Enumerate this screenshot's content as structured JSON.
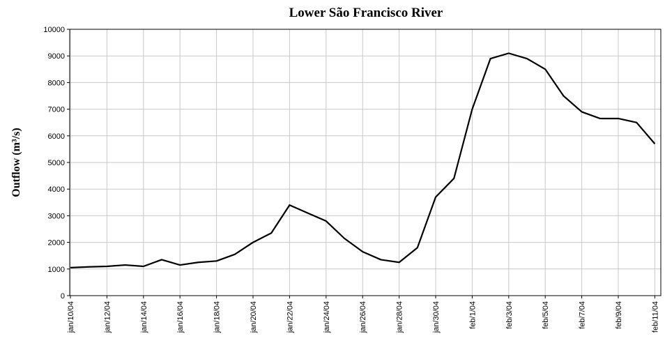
{
  "chart_data": {
    "type": "line",
    "title": "Lower São Francisco River",
    "y_label": "Outflow (m³/s)",
    "categories": [
      "jan/10/04",
      null,
      "jan/12/04",
      null,
      "jan/14/04",
      null,
      "jan/16/04",
      null,
      "jan/18/04",
      null,
      "jan/20/04",
      null,
      "jan/22/04",
      null,
      "jan/24/04",
      null,
      "jan/26/04",
      null,
      "jan/28/04",
      null,
      "jan/30/04",
      null,
      "feb/1/04",
      null,
      "feb/3/04",
      null,
      "feb/5/04",
      null,
      "feb/7/04",
      null,
      "feb/9/04",
      null,
      "feb/11/04"
    ],
    "series": [
      {
        "name": "Outflow",
        "color": "#000000",
        "values": [
          1050,
          1080,
          1100,
          1150,
          1100,
          1350,
          1150,
          1250,
          1300,
          1550,
          2000,
          2350,
          3400,
          3100,
          2800,
          2150,
          1650,
          1350,
          1250,
          1800,
          3700,
          4400,
          7000,
          8900,
          9100,
          8900,
          8500,
          7500,
          6900,
          6650,
          6650,
          6500,
          5700
        ]
      }
    ],
    "ylim": [
      0,
      10000
    ],
    "yticks": [
      0,
      1000,
      2000,
      3000,
      4000,
      5000,
      6000,
      7000,
      8000,
      9000,
      10000
    ],
    "grid": true
  }
}
